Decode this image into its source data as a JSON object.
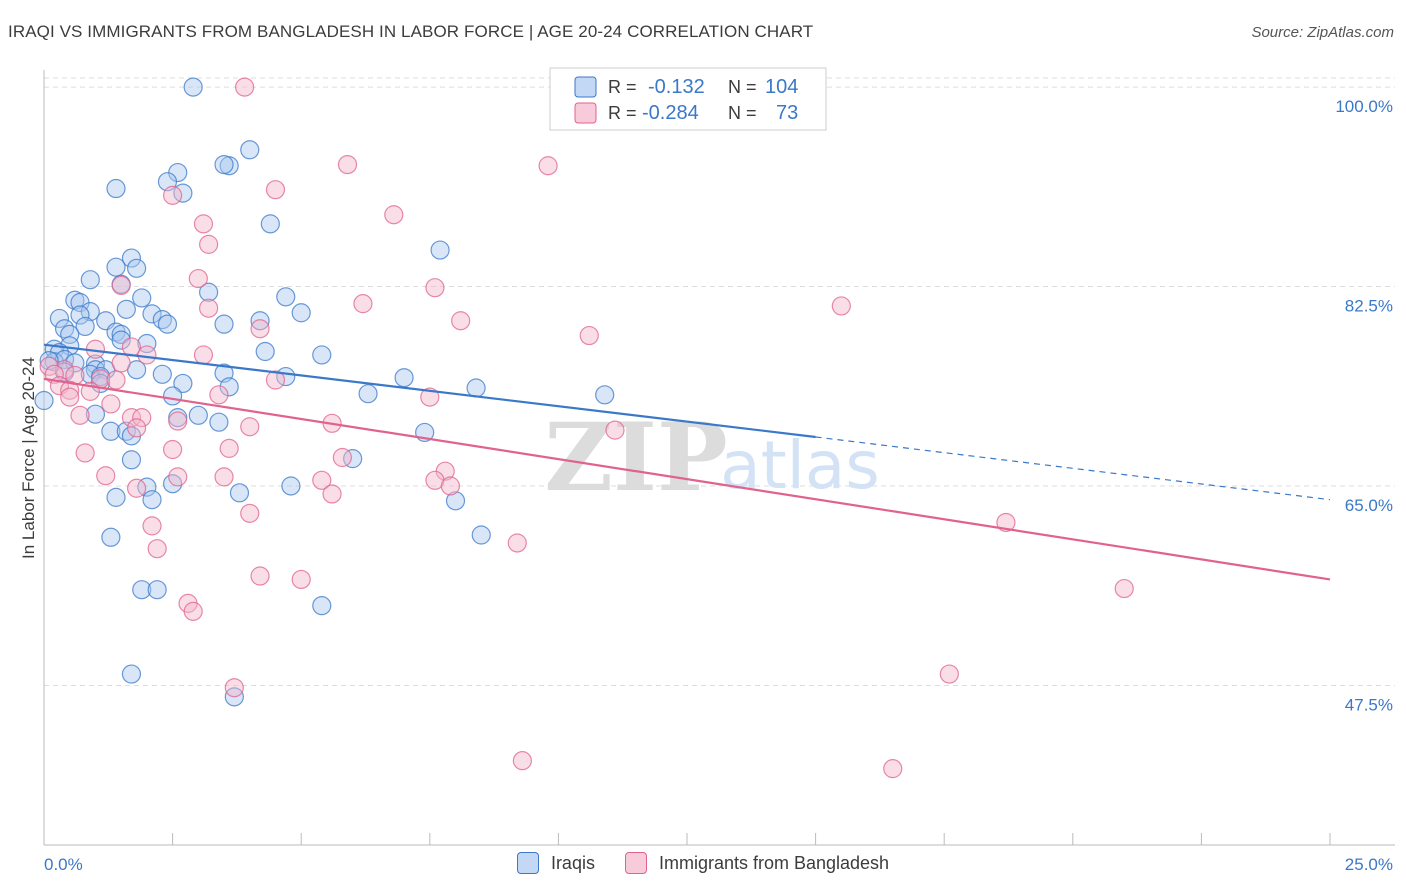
{
  "title": "IRAQI VS IMMIGRANTS FROM BANGLADESH IN LABOR FORCE | AGE 20-24 CORRELATION CHART",
  "source": "Source: ZipAtlas.com",
  "watermark": {
    "zip": "ZIP",
    "atlas": "atlas"
  },
  "colors": {
    "blue": "#3a78c9",
    "blue_fill": "#a9c8ef",
    "pink": "#e0628d",
    "pink_fill": "#f4b5ca",
    "grid": "#dddddd"
  },
  "chart_data": {
    "type": "scatter",
    "xlabel": "",
    "ylabel": "In Labor Force | Age 20-24",
    "xlim": [
      0,
      25
    ],
    "ylim": [
      33.5,
      101.5
    ],
    "x_tick_labels": [
      {
        "value": 0,
        "label": "0.0%"
      },
      {
        "value": 25,
        "label": "25.0%"
      }
    ],
    "y_ticks": [
      {
        "value": 100.0,
        "label": "100.0%"
      },
      {
        "value": 82.5,
        "label": "82.5%"
      },
      {
        "value": 65.0,
        "label": "65.0%"
      },
      {
        "value": 47.5,
        "label": "47.5%"
      }
    ],
    "legend_stats": [
      {
        "r_label": "R =",
        "r": "-0.132",
        "n_label": "N =",
        "n": "104"
      },
      {
        "r_label": "R =",
        "r": "-0.284",
        "n_label": "N =",
        "n": "73"
      }
    ],
    "series": [
      {
        "name": "Iraqis",
        "trend": {
          "x0": 0.0,
          "y0": 77.4,
          "x1": 15.0,
          "y1": 69.3,
          "dash_to_x": 25.0,
          "dash_to_y": 63.8
        },
        "points": [
          [
            2.9,
            100.0
          ],
          [
            4.0,
            94.5
          ],
          [
            3.6,
            93.1
          ],
          [
            3.5,
            93.2
          ],
          [
            2.6,
            92.5
          ],
          [
            2.4,
            91.7
          ],
          [
            1.4,
            91.1
          ],
          [
            2.7,
            90.7
          ],
          [
            4.4,
            88.0
          ],
          [
            7.7,
            85.7
          ],
          [
            1.7,
            85.0
          ],
          [
            1.4,
            84.2
          ],
          [
            1.8,
            84.1
          ],
          [
            0.9,
            83.1
          ],
          [
            1.5,
            82.7
          ],
          [
            3.2,
            82.0
          ],
          [
            4.7,
            81.6
          ],
          [
            0.6,
            81.3
          ],
          [
            0.7,
            81.1
          ],
          [
            1.9,
            81.5
          ],
          [
            1.6,
            80.5
          ],
          [
            0.9,
            80.3
          ],
          [
            0.7,
            80.0
          ],
          [
            0.3,
            79.7
          ],
          [
            2.1,
            80.1
          ],
          [
            5.0,
            80.2
          ],
          [
            1.2,
            79.5
          ],
          [
            2.3,
            79.6
          ],
          [
            3.5,
            79.2
          ],
          [
            4.2,
            79.5
          ],
          [
            2.4,
            79.2
          ],
          [
            0.8,
            79.0
          ],
          [
            0.4,
            78.8
          ],
          [
            1.4,
            78.5
          ],
          [
            1.5,
            78.3
          ],
          [
            0.5,
            78.3
          ],
          [
            0.5,
            77.3
          ],
          [
            1.5,
            77.8
          ],
          [
            0.2,
            77.0
          ],
          [
            2.0,
            77.5
          ],
          [
            4.3,
            76.8
          ],
          [
            5.4,
            76.5
          ],
          [
            0.3,
            76.7
          ],
          [
            0.2,
            75.9
          ],
          [
            0.4,
            76.1
          ],
          [
            0.1,
            76.0
          ],
          [
            0.6,
            75.8
          ],
          [
            1.0,
            75.7
          ],
          [
            1.0,
            75.2
          ],
          [
            1.2,
            75.2
          ],
          [
            0.4,
            75.0
          ],
          [
            0.9,
            74.8
          ],
          [
            1.1,
            74.6
          ],
          [
            1.8,
            75.2
          ],
          [
            2.3,
            74.8
          ],
          [
            3.5,
            74.9
          ],
          [
            4.7,
            74.6
          ],
          [
            7.0,
            74.5
          ],
          [
            1.1,
            74.0
          ],
          [
            2.7,
            74.0
          ],
          [
            3.6,
            73.7
          ],
          [
            6.3,
            73.1
          ],
          [
            8.4,
            73.6
          ],
          [
            10.9,
            73.0
          ],
          [
            2.5,
            72.9
          ],
          [
            2.6,
            71.0
          ],
          [
            3.0,
            71.2
          ],
          [
            0.0,
            72.5
          ],
          [
            1.0,
            71.3
          ],
          [
            3.4,
            70.6
          ],
          [
            1.3,
            69.8
          ],
          [
            1.6,
            69.8
          ],
          [
            7.4,
            69.7
          ],
          [
            1.7,
            69.4
          ],
          [
            1.7,
            67.3
          ],
          [
            6.0,
            67.4
          ],
          [
            2.0,
            64.9
          ],
          [
            2.5,
            65.2
          ],
          [
            3.8,
            64.4
          ],
          [
            4.8,
            65.0
          ],
          [
            1.4,
            64.0
          ],
          [
            2.1,
            63.8
          ],
          [
            8.0,
            63.7
          ],
          [
            8.5,
            60.7
          ],
          [
            1.3,
            60.5
          ],
          [
            1.9,
            55.9
          ],
          [
            2.2,
            55.9
          ],
          [
            5.4,
            54.5
          ],
          [
            1.7,
            48.5
          ],
          [
            3.7,
            46.5
          ]
        ]
      },
      {
        "name": "Immigrants from Bangladesh",
        "trend": {
          "x0": 0.0,
          "y0": 74.4,
          "x1": 25.0,
          "y1": 56.8
        },
        "points": [
          [
            3.9,
            100.0
          ],
          [
            5.9,
            93.2
          ],
          [
            9.8,
            93.1
          ],
          [
            4.5,
            91.0
          ],
          [
            2.5,
            90.5
          ],
          [
            6.8,
            88.8
          ],
          [
            3.1,
            88.0
          ],
          [
            3.2,
            86.2
          ],
          [
            3.0,
            83.2
          ],
          [
            1.5,
            82.6
          ],
          [
            7.6,
            82.4
          ],
          [
            6.2,
            81.0
          ],
          [
            3.2,
            80.6
          ],
          [
            8.1,
            79.5
          ],
          [
            4.2,
            78.8
          ],
          [
            10.6,
            78.2
          ],
          [
            15.5,
            80.8
          ],
          [
            1.7,
            77.2
          ],
          [
            1.0,
            77.0
          ],
          [
            2.0,
            76.5
          ],
          [
            3.1,
            76.5
          ],
          [
            1.5,
            75.8
          ],
          [
            0.4,
            75.2
          ],
          [
            0.1,
            75.5
          ],
          [
            0.2,
            74.8
          ],
          [
            0.6,
            74.7
          ],
          [
            1.1,
            74.4
          ],
          [
            1.4,
            74.3
          ],
          [
            4.5,
            74.3
          ],
          [
            0.3,
            73.8
          ],
          [
            0.5,
            73.4
          ],
          [
            0.9,
            73.3
          ],
          [
            3.4,
            73.0
          ],
          [
            7.5,
            72.8
          ],
          [
            1.3,
            72.2
          ],
          [
            0.5,
            72.8
          ],
          [
            0.7,
            71.2
          ],
          [
            1.7,
            71.0
          ],
          [
            1.9,
            71.0
          ],
          [
            2.6,
            70.7
          ],
          [
            5.6,
            70.5
          ],
          [
            4.0,
            70.2
          ],
          [
            1.8,
            70.1
          ],
          [
            11.1,
            69.9
          ],
          [
            2.5,
            68.2
          ],
          [
            0.8,
            67.9
          ],
          [
            3.6,
            68.3
          ],
          [
            5.8,
            67.5
          ],
          [
            7.8,
            66.3
          ],
          [
            1.2,
            65.9
          ],
          [
            2.6,
            65.8
          ],
          [
            3.5,
            65.8
          ],
          [
            5.4,
            65.5
          ],
          [
            7.6,
            65.5
          ],
          [
            7.9,
            65.0
          ],
          [
            1.8,
            64.8
          ],
          [
            5.6,
            64.3
          ],
          [
            4.0,
            62.6
          ],
          [
            2.1,
            61.5
          ],
          [
            18.7,
            61.8
          ],
          [
            9.2,
            60.0
          ],
          [
            2.2,
            59.5
          ],
          [
            4.2,
            57.1
          ],
          [
            5.0,
            56.8
          ],
          [
            21.0,
            56.0
          ],
          [
            2.8,
            54.7
          ],
          [
            2.9,
            54.0
          ],
          [
            17.6,
            48.5
          ],
          [
            3.7,
            47.3
          ],
          [
            9.3,
            40.9
          ],
          [
            16.5,
            40.2
          ]
        ]
      }
    ],
    "grid": true,
    "legend_position": "top-center"
  }
}
